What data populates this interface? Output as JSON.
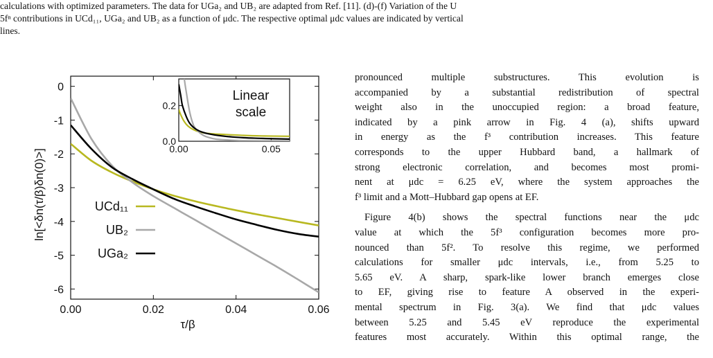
{
  "caption": {
    "line1": "calculations with optimized parameters. The data for UGa₂ and UB₂ are adapted from Ref. [11]. (d)-(f) Variation of the U",
    "line2": "5fⁿ contributions in UCd₁₁, UGa₂ and UB₂ as a function of μdc. The respective optimal μdc values are indicated by vertical",
    "line3": "lines."
  },
  "body": {
    "para1_lines": [
      "pronounced multiple substructures.  This evolution is",
      "accompanied by a substantial redistribution of spectral",
      "weight also in the unoccupied region: a broad feature,",
      "indicated by a pink arrow in Fig. 4 (a), shifts upward",
      "in energy as the f³ contribution increases. This feature",
      "corresponds to the upper Hubbard band, a hallmark of",
      "strong electronic correlation, and becomes most promi-",
      "nent at μdc = 6.25 eV, where the system approaches the",
      "f³ limit and a Mott–Hubbard gap opens at EF."
    ],
    "para2_lines": [
      "Figure 4(b) shows the spectral functions near the μdc",
      "value at which the 5f³ configuration becomes more pro-",
      "nounced than 5f². To resolve this regime, we performed",
      "calculations for smaller μdc intervals, i.e., from 5.25 to",
      "5.65 eV. A sharp, spark-like lower branch emerges close",
      "to EF, giving rise to feature A observed in the experi-",
      "mental spectrum in Fig. 3(a).  We find that μdc values",
      "between 5.25 and 5.45 eV reproduce the experimental",
      "features most accurately. Within this optimal range, the"
    ]
  },
  "chart_data": [
    {
      "type": "line",
      "title": "",
      "xlabel": "τ/β",
      "ylabel": "ln[<δn(τ/β)δn(0)>]",
      "xlim": [
        0.0,
        0.06
      ],
      "ylim": [
        -6.3,
        0.3
      ],
      "xticks": [
        "0.00",
        "0.02",
        "0.04",
        "0.06"
      ],
      "yticks": [
        "0",
        "-1",
        "-2",
        "-3",
        "-4",
        "-5",
        "-6"
      ],
      "grid": false,
      "legend_position": "bottom-left",
      "series": [
        {
          "name": "UCd₁₁",
          "color": "#b8b820",
          "x": [
            0.0,
            0.005,
            0.01,
            0.015,
            0.02,
            0.025,
            0.03,
            0.035,
            0.04,
            0.045,
            0.05,
            0.055,
            0.06
          ],
          "y": [
            -1.7,
            -2.2,
            -2.55,
            -2.82,
            -3.05,
            -3.24,
            -3.4,
            -3.54,
            -3.67,
            -3.79,
            -3.9,
            -4.01,
            -4.12
          ]
        },
        {
          "name": "UB₂",
          "color": "#a8a8a8",
          "x": [
            0.0,
            0.005,
            0.01,
            0.015,
            0.02,
            0.025,
            0.03,
            0.035,
            0.04,
            0.045,
            0.05,
            0.055,
            0.06
          ],
          "y": [
            -0.35,
            -1.55,
            -2.35,
            -2.85,
            -3.25,
            -3.6,
            -3.95,
            -4.3,
            -4.65,
            -5.0,
            -5.35,
            -5.72,
            -6.1
          ]
        },
        {
          "name": "UGa₂",
          "color": "#000000",
          "x": [
            0.0,
            0.005,
            0.01,
            0.015,
            0.02,
            0.025,
            0.03,
            0.035,
            0.04,
            0.045,
            0.05,
            0.055,
            0.06
          ],
          "y": [
            -1.15,
            -1.85,
            -2.4,
            -2.75,
            -3.05,
            -3.33,
            -3.55,
            -3.75,
            -3.94,
            -4.1,
            -4.25,
            -4.37,
            -4.45
          ]
        }
      ]
    },
    {
      "type": "line",
      "title": "Linear scale",
      "xlabel": "",
      "ylabel": "",
      "xlim": [
        0.0,
        0.06
      ],
      "ylim": [
        0.0,
        0.35
      ],
      "xticks": [
        "0.00",
        "0.05"
      ],
      "yticks": [
        "0.0",
        "0.2"
      ],
      "grid": false,
      "series": [
        {
          "name": "UCd₁₁",
          "color": "#b8b820",
          "x": [
            0.0,
            0.001,
            0.003,
            0.005,
            0.008,
            0.012,
            0.018,
            0.025,
            0.035,
            0.045,
            0.06
          ],
          "y": [
            0.18,
            0.15,
            0.11,
            0.085,
            0.065,
            0.05,
            0.042,
            0.038,
            0.033,
            0.03,
            0.028
          ]
        },
        {
          "name": "UB₂",
          "color": "#a8a8a8",
          "x": [
            0.003,
            0.004,
            0.006,
            0.008,
            0.01,
            0.013,
            0.016,
            0.02,
            0.025,
            0.03,
            0.04,
            0.06
          ],
          "y": [
            0.35,
            0.28,
            0.16,
            0.09,
            0.06,
            0.035,
            0.022,
            0.012,
            0.008,
            0.005,
            0.003,
            0.002
          ]
        },
        {
          "name": "UGa₂",
          "color": "#000000",
          "x": [
            0.0,
            0.001,
            0.002,
            0.004,
            0.006,
            0.009,
            0.013,
            0.018,
            0.025,
            0.035,
            0.045,
            0.06
          ],
          "y": [
            0.32,
            0.26,
            0.2,
            0.14,
            0.1,
            0.07,
            0.05,
            0.038,
            0.028,
            0.02,
            0.016,
            0.012
          ]
        }
      ]
    }
  ]
}
